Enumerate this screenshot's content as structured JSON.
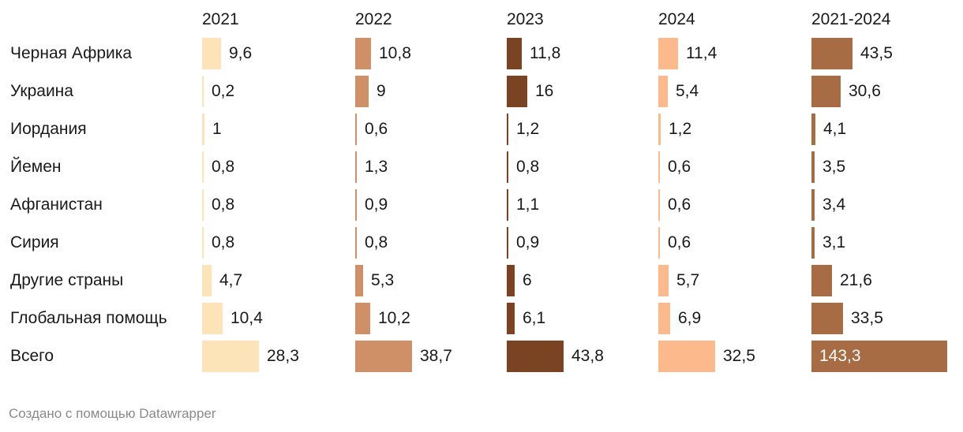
{
  "chart_data": {
    "type": "table",
    "title": "",
    "columns": [
      {
        "name": "2021",
        "color": "#fde3b8"
      },
      {
        "name": "2022",
        "color": "#cf9068"
      },
      {
        "name": "2023",
        "color": "#7a4422"
      },
      {
        "name": "2024",
        "color": "#fcb98b"
      },
      {
        "name": "2021-2024",
        "color": "#a86c44"
      }
    ],
    "rows": [
      {
        "label": "Черная Африка",
        "values": [
          9.6,
          10.8,
          11.8,
          11.4,
          43.5
        ],
        "display": [
          "9,6",
          "10,8",
          "11,8",
          "11,4",
          "43,5"
        ]
      },
      {
        "label": "Украина",
        "values": [
          0.2,
          9,
          16,
          5.4,
          30.6
        ],
        "display": [
          "0,2",
          "9",
          "16",
          "5,4",
          "30,6"
        ]
      },
      {
        "label": "Иордания",
        "values": [
          1,
          0.6,
          1.2,
          1.2,
          4.1
        ],
        "display": [
          "1",
          "0,6",
          "1,2",
          "1,2",
          "4,1"
        ]
      },
      {
        "label": "Йемен",
        "values": [
          0.8,
          1.3,
          0.8,
          0.6,
          3.5
        ],
        "display": [
          "0,8",
          "1,3",
          "0,8",
          "0,6",
          "3,5"
        ]
      },
      {
        "label": "Афганистан",
        "values": [
          0.8,
          0.9,
          1.1,
          0.6,
          3.4
        ],
        "display": [
          "0,8",
          "0,9",
          "1,1",
          "0,6",
          "3,4"
        ]
      },
      {
        "label": "Сирия",
        "values": [
          0.8,
          0.8,
          0.9,
          0.6,
          3.1
        ],
        "display": [
          "0,8",
          "0,8",
          "0,9",
          "0,6",
          "3,1"
        ]
      },
      {
        "label": "Другие страны",
        "values": [
          4.7,
          5.3,
          6,
          5.7,
          21.6
        ],
        "display": [
          "4,7",
          "5,3",
          "6",
          "5,7",
          "21,6"
        ]
      },
      {
        "label": "Глобальная помощь",
        "values": [
          10.4,
          10.2,
          6.1,
          6.9,
          33.5
        ],
        "display": [
          "10,4",
          "10,2",
          "6,1",
          "6,9",
          "33,5"
        ]
      },
      {
        "label": "Всего",
        "values": [
          28.3,
          38.7,
          43.8,
          32.5,
          143.3
        ],
        "display": [
          "28,3",
          "38,7",
          "43,8",
          "32,5",
          "143,3"
        ]
      }
    ]
  },
  "footer": {
    "credit": "Создано с помощью Datawrapper"
  }
}
